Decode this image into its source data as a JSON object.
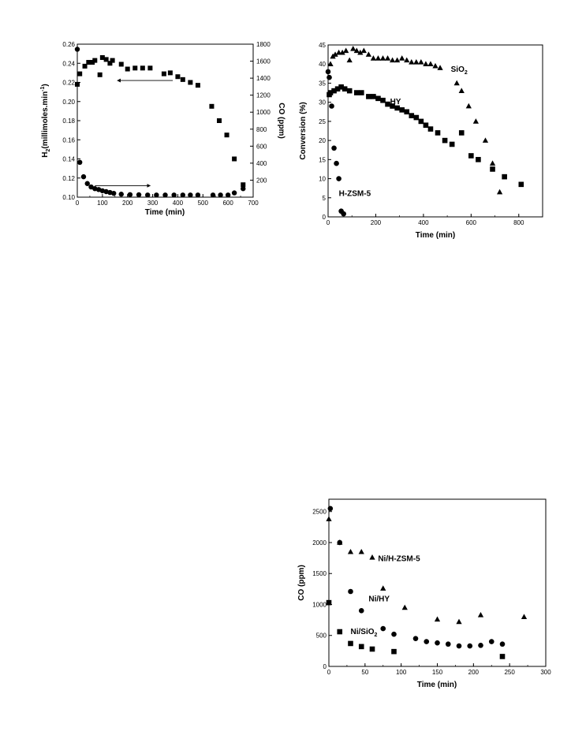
{
  "chart_data": [
    {
      "type": "scatter",
      "xlabel": "Time (min)",
      "ylabel_left": "H2(millimoles.min-1)",
      "ylabel_left_main": "H",
      "ylabel_left_sub": "2",
      "ylabel_left_rest": "(millimoles.min",
      "ylabel_left_sup": "-1",
      "ylabel_left_close": ")",
      "ylabel_right": "CO (ppm)",
      "xlim": [
        0,
        700
      ],
      "ylim_left": [
        0.1,
        0.26
      ],
      "ylim_right": [
        0,
        1800
      ],
      "xticks": [
        "0",
        "100",
        "200",
        "300",
        "400",
        "500",
        "600",
        "700"
      ],
      "yticks_left": [
        "0.10",
        "0.12",
        "0.14",
        "0.16",
        "0.18",
        "0.20",
        "0.22",
        "0.24",
        "0.26"
      ],
      "yticks_right": [
        "200",
        "400",
        "600",
        "800",
        "1000",
        "1200",
        "1400",
        "1600",
        "1800"
      ],
      "series": [
        {
          "marker": "square",
          "axis": "left",
          "x": [
            0,
            10,
            30,
            45,
            60,
            70,
            90,
            100,
            115,
            130,
            140,
            175,
            200,
            230,
            260,
            290,
            345,
            370,
            400,
            420,
            450,
            480,
            535,
            565,
            595,
            625,
            660
          ],
          "y": [
            0.218,
            0.229,
            0.237,
            0.241,
            0.241,
            0.243,
            0.228,
            0.246,
            0.244,
            0.24,
            0.243,
            0.239,
            0.234,
            0.235,
            0.235,
            0.235,
            0.229,
            0.23,
            0.226,
            0.223,
            0.22,
            0.217,
            0.195,
            0.18,
            0.165,
            0.14,
            0.113
          ]
        },
        {
          "marker": "circle",
          "axis": "right",
          "x": [
            0,
            10,
            25,
            40,
            55,
            70,
            85,
            100,
            115,
            130,
            145,
            175,
            210,
            245,
            280,
            315,
            350,
            385,
            420,
            450,
            480,
            540,
            570,
            600,
            625,
            660
          ],
          "y": [
            1740,
            410,
            240,
            160,
            120,
            100,
            90,
            75,
            65,
            55,
            45,
            35,
            30,
            28,
            25,
            25,
            25,
            25,
            25,
            25,
            25,
            25,
            25,
            25,
            50,
            100
          ]
        }
      ],
      "arrows": [
        {
          "from_x": 380,
          "to_x": 160,
          "at_y_left": 0.222
        },
        {
          "from_x": 70,
          "to_x": 290,
          "at_y_left": 0.112
        }
      ]
    },
    {
      "type": "scatter",
      "xlabel": "Time (min)",
      "ylabel": "Conversion (%)",
      "xlim": [
        0,
        900
      ],
      "ylim": [
        0,
        45
      ],
      "xticks": [
        "0",
        "200",
        "400",
        "600",
        "800"
      ],
      "yticks": [
        "0",
        "5",
        "10",
        "15",
        "20",
        "25",
        "30",
        "35",
        "40",
        "45"
      ],
      "series": [
        {
          "name_main": "SiO",
          "name_sub": "2",
          "marker": "triangle",
          "x": [
            10,
            20,
            30,
            45,
            60,
            75,
            90,
            105,
            120,
            135,
            150,
            170,
            190,
            210,
            230,
            250,
            270,
            290,
            310,
            330,
            350,
            370,
            390,
            410,
            430,
            450,
            470,
            540,
            560,
            590,
            620,
            660,
            690,
            720
          ],
          "y": [
            40,
            42,
            42.5,
            43,
            43,
            43.5,
            41,
            44,
            43.5,
            43,
            43.5,
            42.5,
            41.5,
            41.5,
            41.5,
            41.5,
            41,
            41,
            41.5,
            41,
            40.5,
            40.5,
            40.5,
            40,
            40,
            39.5,
            39,
            35,
            33,
            29,
            25,
            20,
            14,
            6.5
          ]
        },
        {
          "name": "HY",
          "marker": "square",
          "x": [
            5,
            10,
            25,
            40,
            55,
            70,
            90,
            120,
            140,
            170,
            190,
            210,
            230,
            250,
            270,
            290,
            310,
            330,
            350,
            370,
            390,
            410,
            430,
            460,
            490,
            520,
            560,
            600,
            630,
            690,
            740,
            810
          ],
          "y": [
            32,
            32.5,
            33,
            33.5,
            34,
            33.5,
            33,
            32.5,
            32.5,
            31.5,
            31.5,
            31,
            30.5,
            29.5,
            29,
            28.5,
            28,
            27.5,
            26.5,
            26,
            25,
            24,
            23,
            22,
            20,
            19,
            22,
            16,
            15,
            12.5,
            10.5,
            8.5
          ]
        },
        {
          "name": "H-ZSM-5",
          "marker": "circle",
          "x": [
            0,
            5,
            15,
            25,
            35,
            45,
            55,
            65
          ],
          "y": [
            38,
            36.5,
            29,
            18,
            14,
            10,
            1.5,
            0.8
          ]
        }
      ],
      "labels": [
        {
          "text": "H-ZSM-5",
          "x": 45,
          "y": 5.5
        },
        {
          "text": "HY",
          "x": 260,
          "y": 29.5
        },
        {
          "text": "SiO2",
          "x": 515,
          "y": 38
        }
      ]
    },
    {
      "type": "scatter",
      "xlabel": "Time (min)",
      "ylabel": "CO (ppm)",
      "xlim": [
        0,
        300
      ],
      "ylim": [
        0,
        2700
      ],
      "xticks": [
        "0",
        "50",
        "100",
        "150",
        "200",
        "250",
        "300"
      ],
      "yticks": [
        "0",
        "500",
        "1000",
        "1500",
        "2000",
        "2500"
      ],
      "series": [
        {
          "name": "Ni/H-ZSM-5",
          "marker": "triangle",
          "x": [
            0,
            15,
            30,
            45,
            60,
            75,
            105,
            150,
            180,
            210,
            270
          ],
          "y": [
            2380,
            2000,
            1850,
            1850,
            1760,
            1260,
            950,
            760,
            720,
            830,
            800
          ]
        },
        {
          "name": "Ni/HY",
          "marker": "circle",
          "x": [
            2,
            15,
            30,
            45,
            75,
            90,
            120,
            135,
            150,
            165,
            180,
            195,
            210,
            225,
            240
          ],
          "y": [
            2550,
            2000,
            1210,
            900,
            610,
            520,
            450,
            400,
            380,
            360,
            330,
            330,
            340,
            400,
            360
          ]
        },
        {
          "name_main": "Ni/SiO",
          "name_sub": "2",
          "marker": "square",
          "x": [
            0,
            15,
            30,
            45,
            60,
            90,
            240
          ],
          "y": [
            1030,
            560,
            370,
            320,
            280,
            240,
            160
          ]
        }
      ],
      "labels": [
        {
          "text": "Ni/H-ZSM-5",
          "x": 68,
          "y": 1700
        },
        {
          "text": "Ni/HY",
          "x": 55,
          "y": 1050
        },
        {
          "text": "Ni/SiO2",
          "x": 30,
          "y": 520
        }
      ]
    }
  ]
}
